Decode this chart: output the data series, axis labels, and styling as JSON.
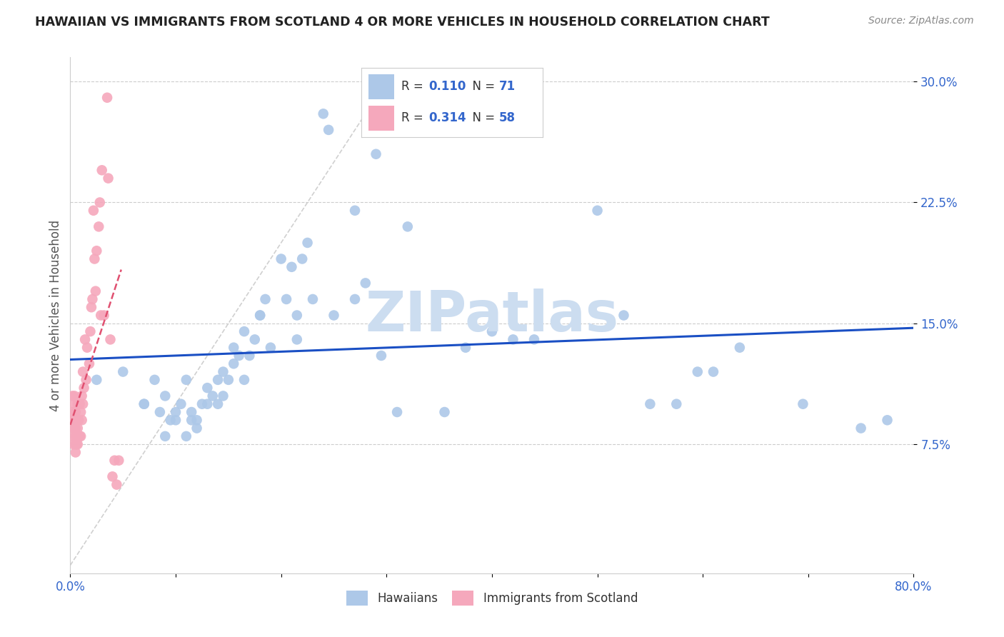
{
  "title": "HAWAIIAN VS IMMIGRANTS FROM SCOTLAND 4 OR MORE VEHICLES IN HOUSEHOLD CORRELATION CHART",
  "source": "Source: ZipAtlas.com",
  "ylabel": "4 or more Vehicles in Household",
  "xlim": [
    0.0,
    0.8
  ],
  "ylim": [
    -0.005,
    0.315
  ],
  "ytick_positions": [
    0.075,
    0.15,
    0.225,
    0.3
  ],
  "ytick_labels": [
    "7.5%",
    "15.0%",
    "22.5%",
    "30.0%"
  ],
  "r_hawaiian": 0.11,
  "n_hawaiian": 71,
  "r_scotland": 0.314,
  "n_scotland": 58,
  "hawaiian_color": "#adc8e8",
  "scotland_color": "#f5a8bc",
  "trend_hawaiian_color": "#1a4fc4",
  "trend_scotland_color": "#e05070",
  "diagonal_color": "#d0d0d0",
  "watermark": "ZIPatlas",
  "watermark_color": "#ccddf0",
  "hawaiian_x": [
    0.025,
    0.05,
    0.07,
    0.07,
    0.08,
    0.085,
    0.09,
    0.09,
    0.095,
    0.1,
    0.1,
    0.105,
    0.11,
    0.11,
    0.115,
    0.115,
    0.12,
    0.12,
    0.125,
    0.13,
    0.13,
    0.135,
    0.14,
    0.14,
    0.145,
    0.145,
    0.15,
    0.155,
    0.155,
    0.16,
    0.165,
    0.165,
    0.17,
    0.175,
    0.18,
    0.18,
    0.185,
    0.19,
    0.2,
    0.205,
    0.21,
    0.215,
    0.215,
    0.22,
    0.225,
    0.23,
    0.24,
    0.245,
    0.25,
    0.27,
    0.27,
    0.28,
    0.29,
    0.295,
    0.31,
    0.32,
    0.355,
    0.375,
    0.4,
    0.42,
    0.44,
    0.5,
    0.525,
    0.55,
    0.575,
    0.595,
    0.61,
    0.635,
    0.695,
    0.75,
    0.775
  ],
  "hawaiian_y": [
    0.115,
    0.12,
    0.1,
    0.1,
    0.115,
    0.095,
    0.105,
    0.08,
    0.09,
    0.095,
    0.09,
    0.1,
    0.115,
    0.08,
    0.09,
    0.095,
    0.085,
    0.09,
    0.1,
    0.11,
    0.1,
    0.105,
    0.115,
    0.1,
    0.105,
    0.12,
    0.115,
    0.125,
    0.135,
    0.13,
    0.145,
    0.115,
    0.13,
    0.14,
    0.155,
    0.155,
    0.165,
    0.135,
    0.19,
    0.165,
    0.185,
    0.155,
    0.14,
    0.19,
    0.2,
    0.165,
    0.28,
    0.27,
    0.155,
    0.22,
    0.165,
    0.175,
    0.255,
    0.13,
    0.095,
    0.21,
    0.095,
    0.135,
    0.145,
    0.14,
    0.14,
    0.22,
    0.155,
    0.1,
    0.1,
    0.12,
    0.12,
    0.135,
    0.1,
    0.085,
    0.09
  ],
  "scotland_x": [
    0.002,
    0.002,
    0.003,
    0.003,
    0.003,
    0.003,
    0.004,
    0.004,
    0.004,
    0.004,
    0.005,
    0.005,
    0.005,
    0.005,
    0.005,
    0.005,
    0.005,
    0.006,
    0.006,
    0.006,
    0.007,
    0.007,
    0.007,
    0.007,
    0.008,
    0.008,
    0.009,
    0.009,
    0.01,
    0.01,
    0.011,
    0.011,
    0.012,
    0.012,
    0.013,
    0.014,
    0.015,
    0.016,
    0.018,
    0.019,
    0.02,
    0.021,
    0.022,
    0.023,
    0.024,
    0.025,
    0.027,
    0.028,
    0.029,
    0.03,
    0.032,
    0.035,
    0.036,
    0.038,
    0.04,
    0.042,
    0.044,
    0.046
  ],
  "scotland_y": [
    0.095,
    0.105,
    0.075,
    0.08,
    0.085,
    0.09,
    0.085,
    0.09,
    0.1,
    0.105,
    0.07,
    0.075,
    0.08,
    0.085,
    0.09,
    0.09,
    0.095,
    0.075,
    0.08,
    0.09,
    0.075,
    0.08,
    0.085,
    0.1,
    0.08,
    0.09,
    0.08,
    0.1,
    0.08,
    0.095,
    0.09,
    0.105,
    0.1,
    0.12,
    0.11,
    0.14,
    0.115,
    0.135,
    0.125,
    0.145,
    0.16,
    0.165,
    0.22,
    0.19,
    0.17,
    0.195,
    0.21,
    0.225,
    0.155,
    0.245,
    0.155,
    0.29,
    0.24,
    0.14,
    0.055,
    0.065,
    0.05,
    0.065
  ]
}
